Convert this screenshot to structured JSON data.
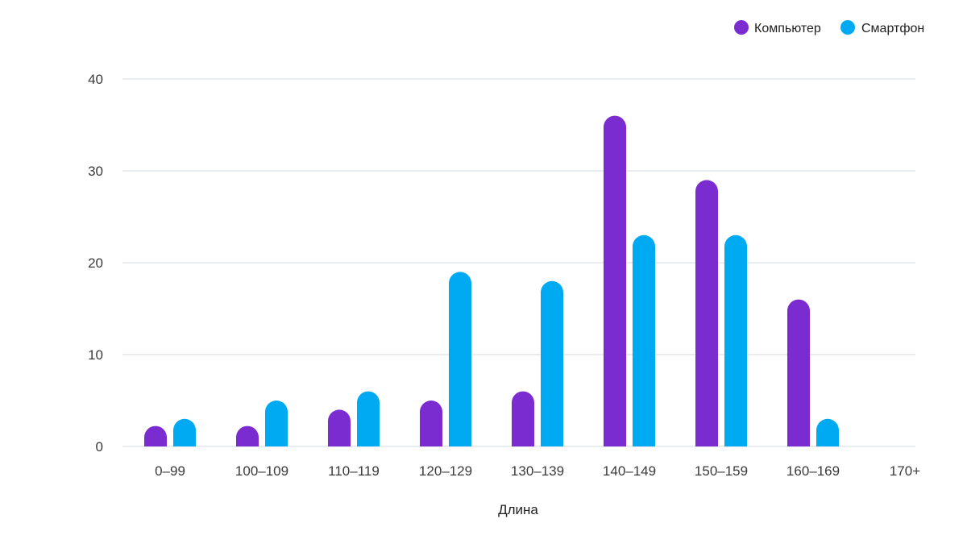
{
  "chart_data": {
    "type": "bar",
    "title": "",
    "xlabel": "Длина",
    "ylabel": "",
    "ylim": [
      0,
      40
    ],
    "yticks": [
      0,
      10,
      20,
      30,
      40
    ],
    "grid": true,
    "legend_position": "top-right",
    "categories": [
      "0–99",
      "100–109",
      "110–119",
      "120–129",
      "130–139",
      "140–149",
      "150–159",
      "160–169",
      "170+"
    ],
    "series": [
      {
        "name": "Компьютер",
        "color": "#7b2cd1",
        "values": [
          2,
          2,
          4,
          5,
          6,
          36,
          29,
          16,
          0
        ]
      },
      {
        "name": "Смартфон",
        "color": "#00aaf3",
        "values": [
          3,
          5,
          6,
          19,
          18,
          23,
          23,
          3,
          0
        ]
      }
    ]
  }
}
